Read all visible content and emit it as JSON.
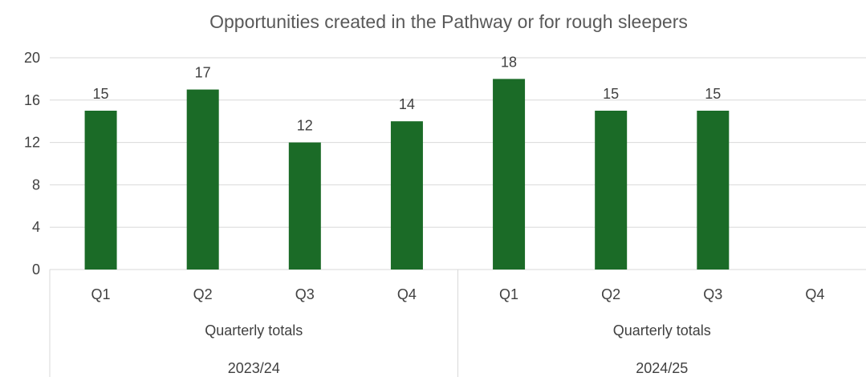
{
  "chart_data": {
    "type": "bar",
    "title": "Opportunities created in the Pathway or for rough sleepers",
    "categories": [
      "Q1",
      "Q2",
      "Q3",
      "Q4",
      "Q1",
      "Q2",
      "Q3",
      "Q4"
    ],
    "category_groups": [
      {
        "label": "Quarterly totals",
        "year": "2023/24",
        "span": 4
      },
      {
        "label": "Quarterly totals",
        "year": "2024/25",
        "span": 4
      }
    ],
    "series": [
      {
        "values": [
          15,
          17,
          12,
          14,
          18,
          15,
          15,
          null
        ],
        "color": "#1b6b27"
      }
    ],
    "data_labels": [
      "15",
      "17",
      "12",
      "14",
      "18",
      "15",
      "15",
      ""
    ],
    "yticks": [
      0,
      4,
      8,
      12,
      16,
      20
    ],
    "ylim": [
      0,
      20
    ],
    "grid": true,
    "legend": "none"
  }
}
